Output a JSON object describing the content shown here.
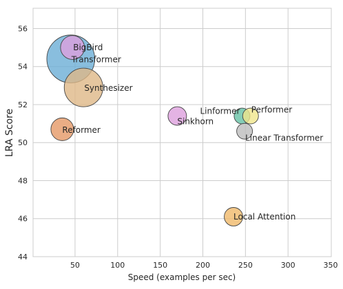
{
  "chart_data": {
    "type": "scatter",
    "title": "",
    "xlabel": "Speed (examples per sec)",
    "ylabel": "LRA Score",
    "xlim": [
      0,
      350
    ],
    "ylim": [
      44,
      57
    ],
    "x_ticks": [
      50,
      100,
      150,
      200,
      250,
      300,
      350
    ],
    "y_ticks": [
      44,
      46,
      48,
      50,
      52,
      54,
      56
    ],
    "grid": true,
    "points": [
      {
        "label": "BigBird",
        "x": 47,
        "y": 55.0,
        "size": 10,
        "color": "#dda0dd"
      },
      {
        "label": "Transformer",
        "x": 45,
        "y": 54.4,
        "size": 40,
        "color": "#6baed6"
      },
      {
        "label": "Synthesizer",
        "x": 60,
        "y": 52.9,
        "size": 26,
        "color": "#deb887"
      },
      {
        "label": "Sinkhorn",
        "x": 170,
        "y": 51.4,
        "size": 6,
        "color": "#dda0dd"
      },
      {
        "label": "Linformer",
        "x": 246,
        "y": 51.4,
        "size": 4,
        "color": "#66c2a5"
      },
      {
        "label": "Performer",
        "x": 256,
        "y": 51.4,
        "size": 4,
        "color": "#f0e68c"
      },
      {
        "label": "Linear Transformer",
        "x": 249,
        "y": 50.6,
        "size": 4,
        "color": "#bdbdbd"
      },
      {
        "label": "Reformer",
        "x": 35,
        "y": 50.7,
        "size": 9,
        "color": "#e59866"
      },
      {
        "label": "Local Attention",
        "x": 236,
        "y": 46.1,
        "size": 6,
        "color": "#f0b96a"
      }
    ]
  }
}
